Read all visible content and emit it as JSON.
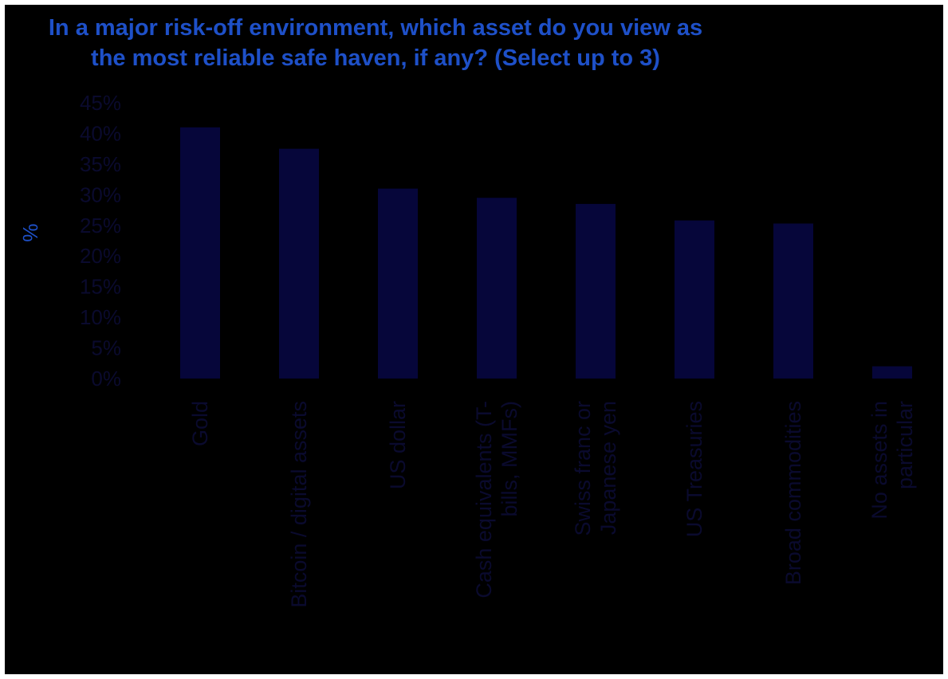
{
  "chart_data": {
    "type": "bar",
    "title_lines": [
      "In a major risk-off environment, which asset do you view as",
      "the most reliable safe haven, if any? (Select up to 3)"
    ],
    "ylabel": "%",
    "xlabel": "",
    "ylim": [
      0,
      45
    ],
    "ytick_labels": [
      "0%",
      "5%",
      "10%",
      "15%",
      "20%",
      "25%",
      "30%",
      "35%",
      "40%",
      "45%"
    ],
    "categories": [
      [
        "Gold"
      ],
      [
        "Bitcoin / digital assets"
      ],
      [
        "US dollar"
      ],
      [
        "Cash equivalents (T-",
        "bills, MMFs)"
      ],
      [
        "Swiss franc or",
        "Japanese yen"
      ],
      [
        "US Treasuries"
      ],
      [
        "Broad commodities"
      ],
      [
        "No assets in",
        "particular"
      ]
    ],
    "values": [
      41,
      37.5,
      31,
      29.5,
      28.5,
      25.8,
      25.3,
      2
    ],
    "grid": false,
    "legend": "none",
    "colors": {
      "background": "#000000",
      "bar": "#06063a",
      "title": "#1e50c8",
      "ylabel": "#1e50c8",
      "tick_text": "#0a0a2e"
    }
  }
}
